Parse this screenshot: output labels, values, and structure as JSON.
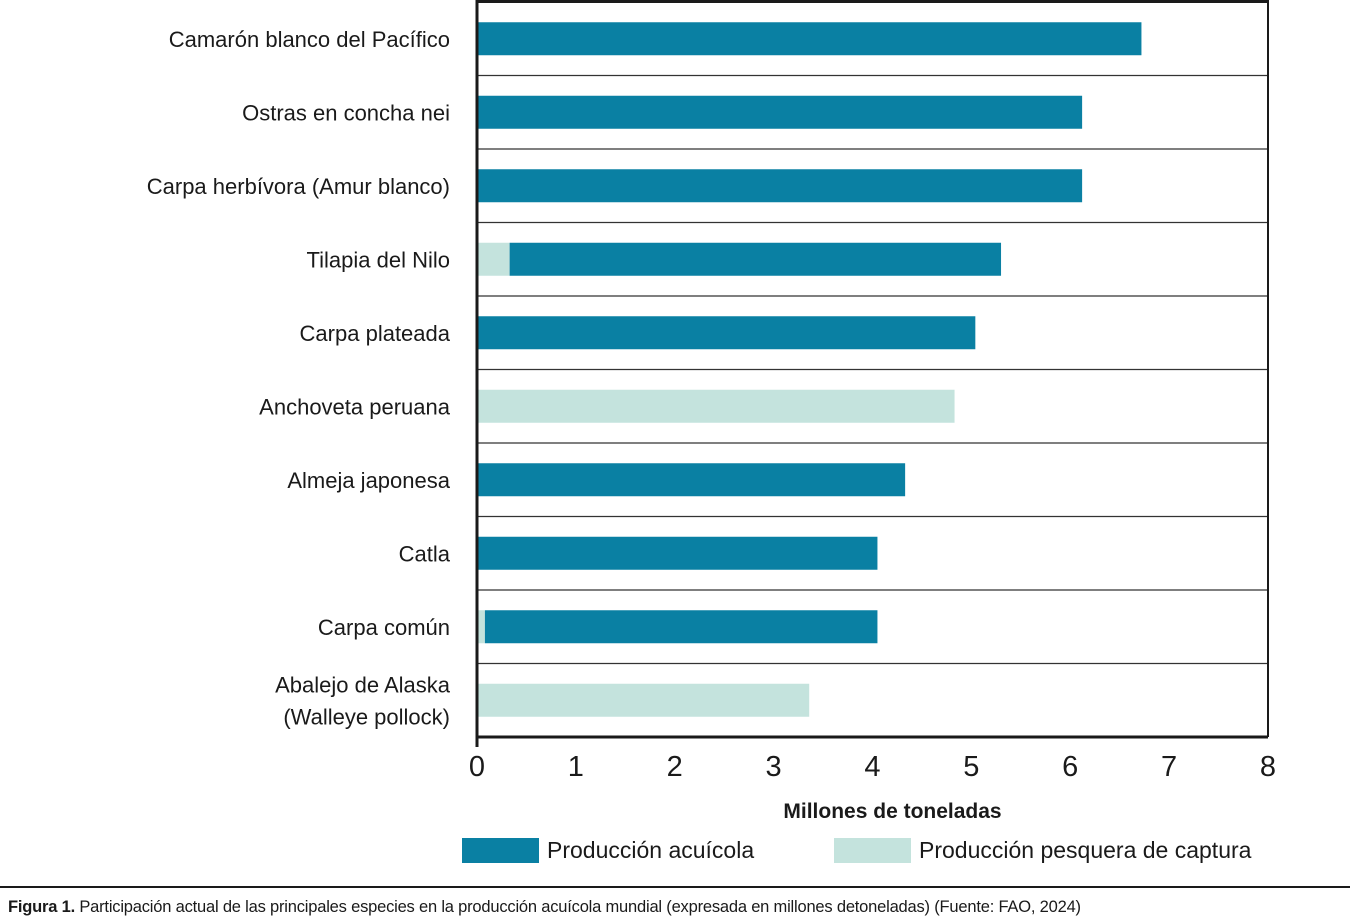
{
  "chart_data": {
    "type": "bar",
    "orientation": "horizontal",
    "stacked": true,
    "categories": [
      "Camarón blanco del Pacífico",
      "Ostras en concha nei",
      "Carpa herbívora (Amur blanco)",
      "Tilapia del Nilo",
      "Carpa plateada",
      "Anchoveta peruana",
      "Almeja japonesa",
      "Catla",
      "Carpa común",
      "Abalejo de Alaska\n(Walleye pollock)"
    ],
    "series": [
      {
        "name": "Producción pesquera de captura",
        "color": "#c4e3dd",
        "values": [
          0,
          0,
          0,
          0.33,
          0,
          4.83,
          0,
          0,
          0.08,
          3.36
        ]
      },
      {
        "name": "Producción acuícola",
        "color": "#0a80a3",
        "values": [
          6.72,
          6.12,
          6.12,
          4.97,
          5.04,
          0,
          4.33,
          4.05,
          3.97,
          0
        ]
      }
    ],
    "xlabel": "Millones de toneladas",
    "xlim": [
      0,
      8
    ],
    "xticks": [
      "0",
      "1",
      "2",
      "3",
      "4",
      "5",
      "6",
      "7",
      "8"
    ],
    "legend_position": "bottom",
    "legend_order": [
      "Producción acuícola",
      "Producción pesquera de captura"
    ]
  },
  "caption": {
    "label": "Figura 1.",
    "text": " Participación actual de las principales especies en la producción acuícola mundial (expresada en millones detoneladas) (Fuente: FAO, 2024)"
  }
}
